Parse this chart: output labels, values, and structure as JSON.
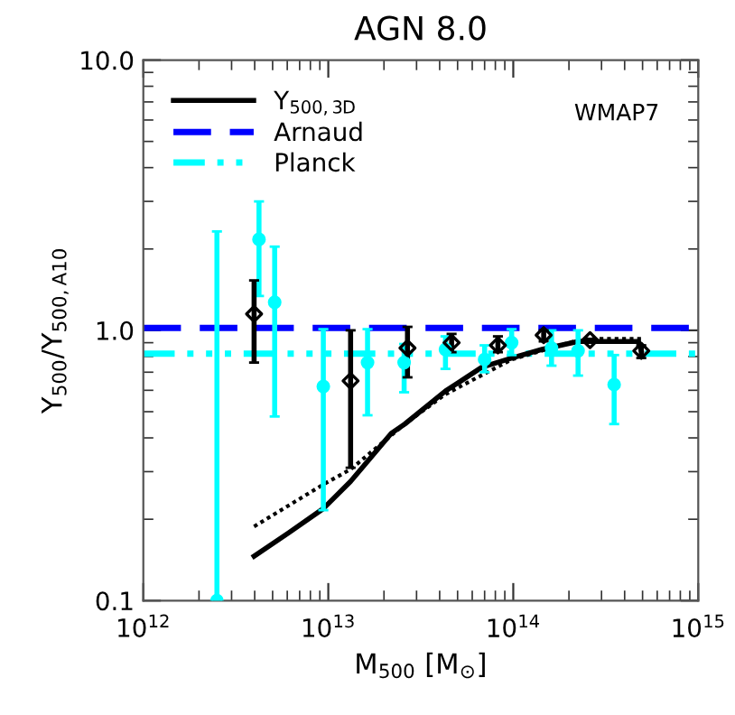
{
  "chart_data": {
    "type": "line",
    "title": "AGN 8.0",
    "xlabel": "M$_{500}$ [M$_{⊙}$]",
    "ylabel": "Y$_{500}$/Y$_{500,A10}$",
    "log": "xy",
    "xlim": [
      1000000000000.0,
      1000000000000000.0
    ],
    "ylim": [
      0.1,
      10
    ],
    "xticks": [
      {
        "value": 1000000000000.0,
        "label": "10$^{12}$"
      },
      {
        "value": 10000000000000.0,
        "label": "10$^{13}$"
      },
      {
        "value": 100000000000000.0,
        "label": "10$^{14}$"
      },
      {
        "value": 1000000000000000.0,
        "label": "10$^{15}$"
      }
    ],
    "yticks": [
      {
        "value": 0.1,
        "label": "0.1"
      },
      {
        "value": 1,
        "label": "1.0"
      },
      {
        "value": 10,
        "label": "10.0"
      }
    ],
    "grid": false,
    "legend": "top left",
    "annotations": [
      "WMAP7"
    ],
    "ref_lines": [
      {
        "axis": "y",
        "value": 1.02,
        "label": "Arnaud",
        "color": "#0000ff",
        "line_style": "dashed"
      },
      {
        "axis": "y",
        "value": 0.82,
        "label": "Planck",
        "color": "#00ffff",
        "line_style": "dashdot"
      }
    ],
    "series": [
      {
        "name": "Y$_{500,3D}$",
        "color": "#000000",
        "line_style": "solid",
        "marker": "none",
        "x": [
          3970000000000.0,
          6100000000000.0,
          9400000000000.0,
          13200000000000.0,
          21900000000000.0,
          25900000000000.0,
          43000000000000.0,
          67500000000000.0,
          98000000000000.0,
          143000000000000.0,
          224000000000000.0,
          475000000000000.0,
          492000000000000.0
        ],
        "values": [
          0.146,
          0.178,
          0.219,
          0.276,
          0.416,
          0.45,
          0.596,
          0.73,
          0.79,
          0.85,
          0.91,
          0.91,
          0.84
        ]
      },
      {
        "color": "#000000",
        "line_style": "dotted",
        "marker": "none",
        "x": [
          3970000000000.0,
          9400000000000.0,
          13200000000000.0,
          25900000000000.0,
          43000000000000.0,
          98000000000000.0,
          224000000000000.0,
          260000000000000.0,
          492000000000000.0
        ],
        "values": [
          0.188,
          0.269,
          0.306,
          0.45,
          0.58,
          0.78,
          0.92,
          0.93,
          0.93
        ]
      },
      {
        "type": "scatter",
        "color": "#00ffff",
        "marker": "circle",
        "x": [
          2500000000000.0,
          4220000000000.0,
          5130000000000.0,
          9400000000000.0,
          16300000000000.0,
          25700000000000.0,
          43000000000000.0,
          70000000000000.0,
          98000000000000.0,
          161000000000000.0,
          224000000000000.0,
          351000000000000.0
        ],
        "values": [
          0.1,
          2.17,
          1.27,
          0.62,
          0.76,
          0.76,
          0.85,
          0.78,
          0.9,
          0.86,
          0.84,
          0.63
        ],
        "errors": [
          [
            0.1,
            2.32
          ],
          [
            1.34,
            3.0
          ],
          [
            0.48,
            2.04
          ],
          [
            0.216,
            1.01
          ],
          [
            0.485,
            1.01
          ],
          [
            0.59,
            0.89
          ],
          [
            0.72,
            0.95
          ],
          [
            0.7,
            0.88
          ],
          [
            0.81,
            1.01
          ],
          [
            0.74,
            1.0
          ],
          [
            0.68,
            1.0
          ],
          [
            0.45,
            0.81
          ]
        ]
      },
      {
        "type": "scatter",
        "color": "#000000",
        "marker": "diamond",
        "x": [
          3970000000000.0,
          13200000000000.0,
          26800000000000.0,
          46400000000000.0,
          82600000000000.0,
          146000000000000.0,
          260000000000000.0,
          492000000000000.0
        ],
        "values": [
          1.15,
          0.65,
          0.86,
          0.9,
          0.88,
          0.96,
          0.92,
          0.84
        ],
        "errors": [
          [
            0.76,
            1.53
          ],
          [
            0.31,
            1.0
          ],
          [
            0.67,
            1.03
          ],
          [
            0.83,
            0.97
          ],
          [
            0.83,
            0.95
          ],
          [
            0.91,
            1.0
          ],
          [
            0.91,
            0.93
          ],
          [
            0.79,
            0.88
          ]
        ]
      }
    ]
  }
}
